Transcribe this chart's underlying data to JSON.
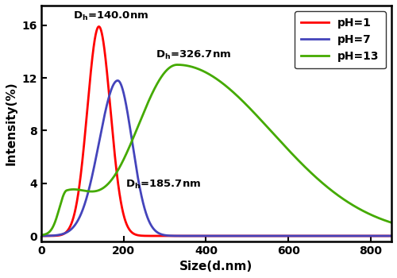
{
  "title": "",
  "xlabel": "Size(d.nm)",
  "ylabel": "Intensity(%)",
  "xlim": [
    0,
    850
  ],
  "ylim": [
    -0.4,
    17.5
  ],
  "xticks": [
    0,
    200,
    400,
    600,
    800
  ],
  "yticks": [
    0,
    4,
    8,
    12,
    16
  ],
  "curves": [
    {
      "label": "pH=1",
      "color": "#FF0000"
    },
    {
      "label": "pH=7",
      "color": "#4444BB"
    },
    {
      "label": "pH=13",
      "color": "#44AA00"
    }
  ],
  "ann1_x": 78,
  "ann1_y": 16.5,
  "ann2_x": 205,
  "ann2_y": 3.7,
  "ann3_x": 278,
  "ann3_y": 13.5,
  "legend_loc": "upper right",
  "background_color": "#ffffff"
}
